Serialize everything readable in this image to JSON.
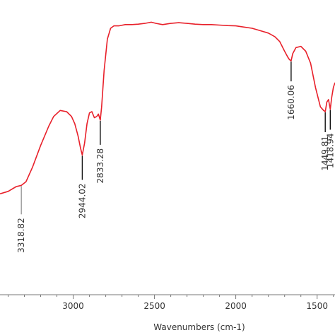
{
  "chart_data": {
    "type": "line",
    "title": "",
    "xlabel": "Wavenumbers (cm-1)",
    "ylabel": "",
    "x_reversed": true,
    "xlim": [
      3450,
      1390
    ],
    "ylim": [
      0,
      1
    ],
    "grid": false,
    "xticks": [
      3000,
      2500,
      2000,
      1500
    ],
    "xtick_labels": [
      "3000",
      "2500",
      "2000",
      "1500"
    ],
    "series": [
      {
        "color": "#e8202a",
        "x": [
          3450,
          3400,
          3350,
          3318.82,
          3290,
          3250,
          3200,
          3150,
          3120,
          3080,
          3040,
          3010,
          2990,
          2970,
          2955,
          2944.02,
          2930,
          2915,
          2900,
          2885,
          2870,
          2855,
          2845,
          2833.28,
          2825,
          2810,
          2790,
          2770,
          2750,
          2720,
          2680,
          2640,
          2600,
          2560,
          2520,
          2490,
          2450,
          2400,
          2350,
          2300,
          2250,
          2200,
          2150,
          2100,
          2050,
          2000,
          1950,
          1900,
          1850,
          1800,
          1760,
          1730,
          1700,
          1680,
          1670,
          1660.06,
          1650,
          1630,
          1600,
          1570,
          1540,
          1510,
          1480,
          1460,
          1449.81,
          1440,
          1430,
          1418.94,
          1410,
          1400,
          1390
        ],
        "y": [
          0.28,
          0.29,
          0.31,
          0.315,
          0.33,
          0.39,
          0.48,
          0.56,
          0.6,
          0.625,
          0.62,
          0.6,
          0.57,
          0.52,
          0.47,
          0.44,
          0.49,
          0.57,
          0.615,
          0.62,
          0.595,
          0.6,
          0.61,
          0.585,
          0.64,
          0.79,
          0.92,
          0.965,
          0.975,
          0.975,
          0.98,
          0.98,
          0.982,
          0.985,
          0.99,
          0.985,
          0.98,
          0.985,
          0.988,
          0.985,
          0.982,
          0.98,
          0.98,
          0.978,
          0.976,
          0.975,
          0.97,
          0.965,
          0.955,
          0.945,
          0.93,
          0.91,
          0.87,
          0.845,
          0.835,
          0.83,
          0.86,
          0.885,
          0.89,
          0.87,
          0.82,
          0.72,
          0.64,
          0.625,
          0.62,
          0.66,
          0.67,
          0.63,
          0.68,
          0.72,
          0.74
        ]
      }
    ],
    "annotations": [
      {
        "x": 3318.82,
        "label": "3318.82"
      },
      {
        "x": 2944.02,
        "label": "2944.02"
      },
      {
        "x": 2833.28,
        "label": "2833.28"
      },
      {
        "x": 1660.06,
        "label": "1660.06"
      },
      {
        "x": 1449.81,
        "label": "1449.81"
      },
      {
        "x": 1418.94,
        "label": "1418.94"
      }
    ]
  }
}
